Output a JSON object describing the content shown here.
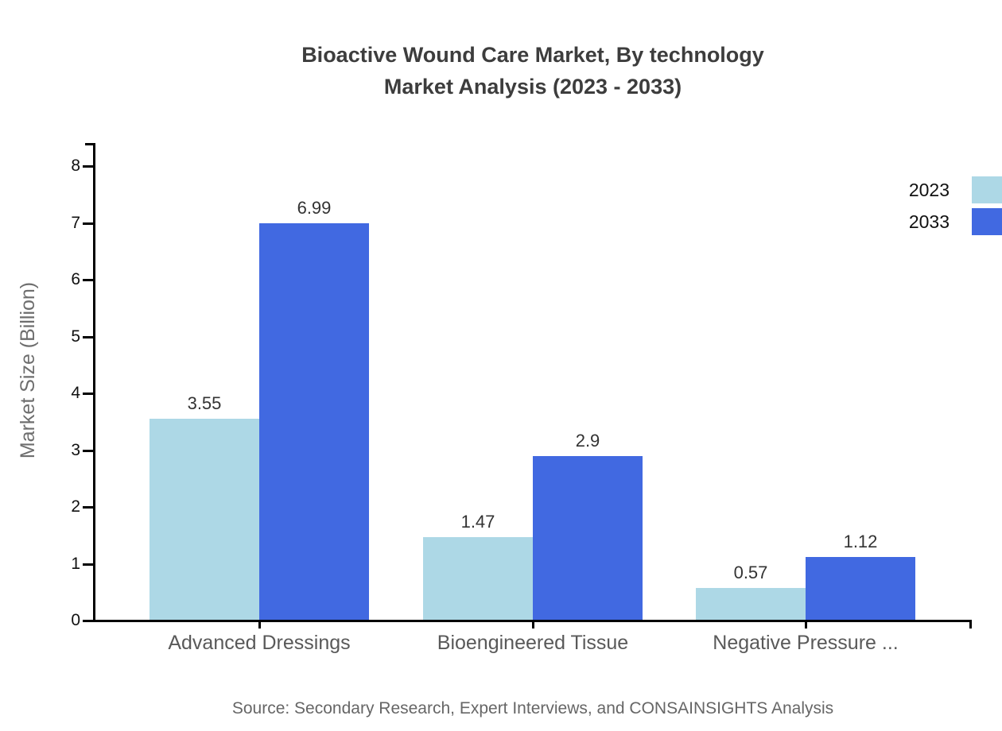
{
  "chart_data": {
    "type": "bar",
    "title": "Bioactive Wound Care Market, By technology Market Analysis (2023 - 2033)",
    "title_line1": "Bioactive Wound Care Market, By technology",
    "title_line2": "Market Analysis (2023 - 2033)",
    "categories": [
      "Advanced Dressings",
      "Bioengineered Tissue",
      "Negative Pressure ..."
    ],
    "series": [
      {
        "name": "2023",
        "color": "#ADD8E6",
        "values": [
          3.55,
          1.47,
          0.57
        ]
      },
      {
        "name": "2033",
        "color": "#4169E1",
        "values": [
          6.99,
          2.9,
          1.12
        ]
      }
    ],
    "xlabel": "",
    "ylabel": "Market Size (Billion)",
    "ylim": [
      0,
      8
    ],
    "yticks": [
      0,
      1,
      2,
      3,
      4,
      5,
      6,
      7,
      8
    ],
    "grid": false,
    "legend_position": "outside-top-right",
    "bar_value_labels": true,
    "colors": {
      "axis": "#000000",
      "title_text": "#3d3d3d",
      "tick_text": "#111111",
      "category_text": "#595959",
      "value_text": "#333333",
      "muted_text": "#6e6e6e",
      "background": "#ffffff"
    }
  },
  "footer": {
    "source_note": "Source: Secondary Research, Expert Interviews, and CONSAINSIGHTS Analysis"
  }
}
